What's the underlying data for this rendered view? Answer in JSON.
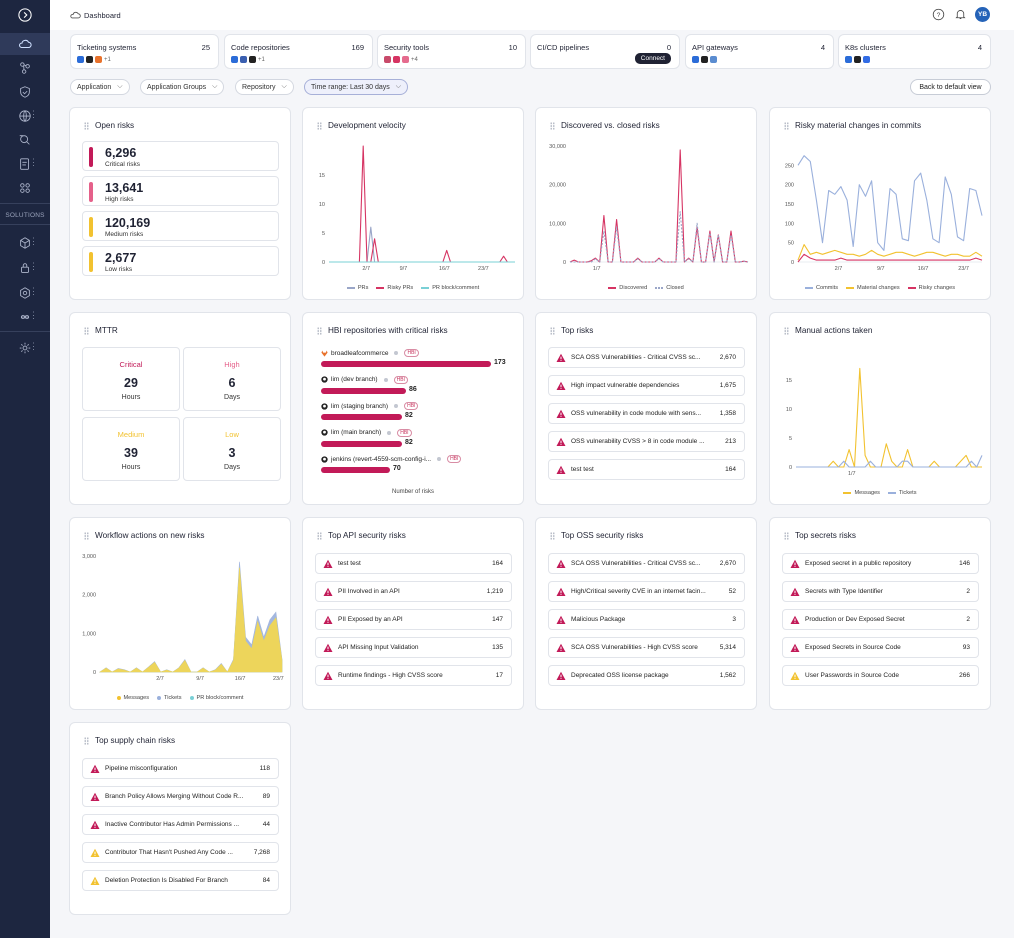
{
  "header": {
    "title": "Dashboard",
    "avatar": "YB"
  },
  "sidebar": {
    "solutions_label": "SOLUTIONS"
  },
  "integrations": [
    {
      "name": "Ticketing systems",
      "count": "25",
      "more": "+1"
    },
    {
      "name": "Code repositories",
      "count": "169",
      "more": "+1"
    },
    {
      "name": "Security tools",
      "count": "10",
      "more": "+4"
    },
    {
      "name": "CI/CD pipelines",
      "count": "0",
      "action": "Connect"
    },
    {
      "name": "API gateways",
      "count": "4"
    },
    {
      "name": "K8s clusters",
      "count": "4"
    }
  ],
  "filters": {
    "application": "Application",
    "groups": "Application Groups",
    "repository": "Repository",
    "time_range": "Time range: Last 30 days",
    "back": "Back to default view"
  },
  "open_risks": {
    "title": "Open risks",
    "items": [
      {
        "value": "6,296",
        "label": "Critical risks",
        "color": "#c21a58"
      },
      {
        "value": "13,641",
        "label": "High risks",
        "color": "#e5608a"
      },
      {
        "value": "120,169",
        "label": "Medium risks",
        "color": "#f2c230"
      },
      {
        "value": "2,677",
        "label": "Low risks",
        "color": "#f2c230"
      }
    ]
  },
  "mttr": {
    "title": "MTTR",
    "items": [
      {
        "label": "Critical",
        "value": "29",
        "unit": "Hours",
        "color": "#c21a58"
      },
      {
        "label": "High",
        "value": "6",
        "unit": "Days",
        "color": "#e5608a"
      },
      {
        "label": "Medium",
        "value": "39",
        "unit": "Hours",
        "color": "#f2c230"
      },
      {
        "label": "Low",
        "value": "3",
        "unit": "Days",
        "color": "#f2c230"
      }
    ]
  },
  "hbi": {
    "title": "HBI repositories with critical risks",
    "tag": "HBI",
    "axis_label": "Number of risks",
    "items": [
      {
        "name": "broadleafcommerce",
        "value": 173,
        "label": "173"
      },
      {
        "name": "lim (dev branch)",
        "value": 86,
        "label": "86"
      },
      {
        "name": "lim (staging branch)",
        "value": 82,
        "label": "82"
      },
      {
        "name": "lim (main branch)",
        "value": 82,
        "label": "82"
      },
      {
        "name": "jenkins (revert-4559-scm-config-i...",
        "value": 70,
        "label": "70"
      }
    ]
  },
  "top_risks": {
    "title": "Top risks",
    "items": [
      {
        "text": "SCA OSS Vulnerabilities - Critical CVSS sc...",
        "value": "2,670",
        "level": "critical"
      },
      {
        "text": "High impact vulnerable dependencies",
        "value": "1,675",
        "level": "critical"
      },
      {
        "text": "OSS vulnerability in code module with sens...",
        "value": "1,358",
        "level": "critical"
      },
      {
        "text": "OSS vulnerability CVSS > 8 in code module ...",
        "value": "213",
        "level": "critical"
      },
      {
        "text": "test test",
        "value": "164",
        "level": "critical"
      }
    ]
  },
  "api_risks": {
    "title": "Top API security risks",
    "items": [
      {
        "text": "test test",
        "value": "164",
        "level": "critical"
      },
      {
        "text": "PII Involved in an API",
        "value": "1,219",
        "level": "critical"
      },
      {
        "text": "PII Exposed by an API",
        "value": "147",
        "level": "critical"
      },
      {
        "text": "API Missing Input Validation",
        "value": "135",
        "level": "critical"
      },
      {
        "text": "Runtime findings - High CVSS score",
        "value": "17",
        "level": "critical"
      }
    ]
  },
  "oss_risks": {
    "title": "Top OSS security risks",
    "items": [
      {
        "text": "SCA OSS Vulnerabilities - Critical CVSS sc...",
        "value": "2,670",
        "level": "critical"
      },
      {
        "text": "High/Critical severity CVE in an internet facin...",
        "value": "52",
        "level": "critical"
      },
      {
        "text": "Malicious Package",
        "value": "3",
        "level": "critical"
      },
      {
        "text": "SCA OSS Vulnerabilities - High CVSS score",
        "value": "5,314",
        "level": "critical"
      },
      {
        "text": "Deprecated OSS license package",
        "value": "1,562",
        "level": "critical"
      }
    ]
  },
  "secrets_risks": {
    "title": "Top secrets risks",
    "items": [
      {
        "text": "Exposed secret in a public repository",
        "value": "146",
        "level": "critical"
      },
      {
        "text": "Secrets with Type Identifier",
        "value": "2",
        "level": "critical"
      },
      {
        "text": "Production or Dev Exposed Secret",
        "value": "2",
        "level": "critical"
      },
      {
        "text": "Exposed Secrets in Source Code",
        "value": "93",
        "level": "critical"
      },
      {
        "text": "User Passwords in Source Code",
        "value": "266",
        "level": "medium"
      }
    ]
  },
  "supply_risks": {
    "title": "Top supply chain risks",
    "items": [
      {
        "text": "Pipeline misconfiguration",
        "value": "118",
        "level": "critical"
      },
      {
        "text": "Branch Policy Allows Merging Without Code R...",
        "value": "89",
        "level": "critical"
      },
      {
        "text": "Inactive Contributor Has Admin Permissions ...",
        "value": "44",
        "level": "critical"
      },
      {
        "text": "Contributor That Hasn't Pushed Any Code ...",
        "value": "7,268",
        "level": "medium"
      },
      {
        "text": "Deletion Protection Is Disabled For Branch",
        "value": "84",
        "level": "medium"
      }
    ]
  },
  "chart_data": [
    {
      "id": "velocity",
      "type": "line",
      "title": "Development velocity",
      "ylim": [
        0,
        20
      ],
      "yticks": [
        "0",
        "5",
        "10",
        "15"
      ],
      "xticks": [
        "2/7",
        "9/7",
        "16/7",
        "23/7"
      ],
      "series": [
        {
          "name": "PRs",
          "color": "#9aa6c8",
          "values": [
            0,
            0,
            0,
            0,
            0,
            0,
            0,
            0,
            0,
            0,
            0,
            6,
            0,
            0,
            0,
            0,
            0,
            0,
            0,
            0,
            0,
            0,
            0,
            0,
            0,
            0,
            0,
            0,
            0,
            0,
            0,
            0,
            0,
            0,
            0,
            0,
            0,
            0,
            0,
            0,
            0,
            0,
            0,
            0,
            0,
            0,
            0,
            0,
            0,
            0
          ]
        },
        {
          "name": "Risky PRs",
          "color": "#d63463",
          "values": [
            0,
            0,
            0,
            0,
            0,
            0,
            0,
            0,
            0,
            20,
            0,
            0,
            4,
            0,
            0,
            0,
            0,
            0,
            0,
            0,
            0,
            0,
            0,
            0,
            0,
            0,
            0,
            0,
            0,
            0,
            0,
            2,
            0,
            0,
            0,
            0,
            0,
            0,
            0,
            0,
            0,
            0,
            0,
            0,
            0,
            0,
            1,
            0,
            0,
            0
          ]
        },
        {
          "name": "PR block/comment",
          "color": "#7ad0d6",
          "values": [
            0,
            0,
            0,
            0,
            0,
            0,
            0,
            0,
            0,
            0,
            0,
            0,
            0,
            0,
            0,
            0,
            0,
            0,
            0,
            0,
            0,
            0,
            0,
            0,
            0,
            0,
            0,
            0,
            0,
            0,
            0,
            0,
            0,
            0,
            0,
            0,
            0,
            0,
            0,
            0,
            0,
            0,
            0,
            0,
            0,
            0,
            0,
            0,
            0,
            0
          ]
        }
      ]
    },
    {
      "id": "discovered",
      "type": "line",
      "title": "Discovered vs. closed risks",
      "ylim": [
        0,
        30000
      ],
      "yticks": [
        "0",
        "10,000",
        "20,000",
        "30,000"
      ],
      "xticks": [
        "1/7"
      ],
      "series": [
        {
          "name": "Discovered",
          "color": "#d63463",
          "values": [
            0,
            500,
            0,
            0,
            0,
            300,
            1000,
            0,
            12000,
            0,
            0,
            11000,
            0,
            0,
            0,
            0,
            1000,
            0,
            0,
            0,
            0,
            1000,
            0,
            0,
            0,
            0,
            29000,
            0,
            1000,
            0,
            9000,
            0,
            0,
            8000,
            0,
            7000,
            0,
            0,
            8000,
            0,
            0,
            200,
            0
          ]
        },
        {
          "name": "Closed",
          "color": "#9aa6c8",
          "dash": true,
          "values": [
            0,
            0,
            0,
            0,
            0,
            0,
            800,
            0,
            8000,
            0,
            0,
            9000,
            0,
            0,
            0,
            0,
            800,
            0,
            0,
            0,
            0,
            800,
            0,
            0,
            0,
            0,
            13000,
            0,
            800,
            0,
            10000,
            0,
            0,
            7500,
            0,
            7000,
            0,
            0,
            7000,
            0,
            0,
            200,
            0
          ]
        }
      ]
    },
    {
      "id": "commits",
      "type": "line",
      "title": "Risky material changes in commits",
      "ylim": [
        0,
        300
      ],
      "yticks": [
        "0",
        "50",
        "100",
        "150",
        "200",
        "250"
      ],
      "xticks": [
        "2/7",
        "9/7",
        "16/7",
        "23/7"
      ],
      "series": [
        {
          "name": "Commits",
          "color": "#9ab0dc",
          "values": [
            250,
            275,
            260,
            160,
            50,
            185,
            175,
            195,
            160,
            40,
            200,
            170,
            210,
            50,
            30,
            190,
            175,
            60,
            55,
            210,
            230,
            160,
            60,
            50,
            220,
            175,
            65,
            55,
            190,
            185,
            120
          ]
        },
        {
          "name": "Material changes",
          "color": "#f2c230",
          "values": [
            5,
            45,
            20,
            25,
            20,
            25,
            30,
            25,
            20,
            20,
            15,
            20,
            30,
            20,
            15,
            20,
            25,
            25,
            20,
            15,
            20,
            25,
            25,
            20,
            15,
            20,
            20,
            15,
            15,
            25,
            15
          ]
        },
        {
          "name": "Risky changes",
          "color": "#d63463",
          "values": [
            0,
            20,
            10,
            5,
            5,
            5,
            5,
            10,
            5,
            5,
            5,
            5,
            5,
            5,
            5,
            5,
            5,
            5,
            5,
            5,
            5,
            5,
            5,
            5,
            5,
            5,
            5,
            5,
            5,
            10,
            5
          ]
        }
      ]
    },
    {
      "id": "manual",
      "type": "line",
      "title": "Manual actions taken",
      "ylim": [
        0,
        20
      ],
      "yticks": [
        "0",
        "5",
        "10",
        "15"
      ],
      "xticks": [
        "1/7"
      ],
      "series": [
        {
          "name": "Messages",
          "color": "#f2c230",
          "values": [
            0,
            0,
            0,
            0,
            0,
            0,
            0,
            1,
            0,
            0,
            3,
            0,
            17,
            2,
            0,
            0,
            0,
            4,
            1,
            0,
            0,
            3,
            0,
            0,
            0,
            0,
            1,
            0,
            0,
            0,
            0,
            1,
            2,
            0,
            0,
            0
          ]
        },
        {
          "name": "Tickets",
          "color": "#9ab0dc",
          "values": [
            0,
            0,
            0,
            0,
            0,
            0,
            0,
            0,
            0,
            1,
            0,
            0,
            0,
            0,
            1,
            0,
            0,
            0,
            0,
            0,
            1,
            1,
            0,
            0,
            0,
            0,
            0,
            0,
            0,
            0,
            0,
            0,
            0,
            1,
            0,
            2
          ]
        }
      ]
    },
    {
      "id": "workflow",
      "type": "area",
      "title": "Workflow actions on new risks",
      "ylim": [
        0,
        3000
      ],
      "yticks": [
        "0",
        "1,000",
        "2,000",
        "3,000"
      ],
      "xticks": [
        "2/7",
        "9/7",
        "16/7",
        "23/7"
      ],
      "series": [
        {
          "name": "Messages",
          "color": "#f7d94e",
          "values": [
            0,
            100,
            0,
            80,
            50,
            0,
            100,
            0,
            120,
            250,
            0,
            50,
            0,
            100,
            300,
            0,
            0,
            100,
            0,
            50,
            200,
            0,
            300,
            2700,
            800,
            600,
            1300,
            800,
            1200,
            1400,
            300
          ]
        },
        {
          "name": "Tickets",
          "color": "#9ab0dc",
          "values": [
            0,
            10,
            0,
            10,
            10,
            0,
            10,
            0,
            10,
            20,
            0,
            10,
            0,
            10,
            20,
            0,
            0,
            10,
            0,
            10,
            20,
            0,
            30,
            150,
            100,
            100,
            150,
            100,
            150,
            150,
            30
          ]
        },
        {
          "name": "PR block/comment",
          "color": "#7ad0d6",
          "values": [
            0,
            0,
            0,
            0,
            0,
            0,
            0,
            0,
            0,
            0,
            0,
            0,
            0,
            0,
            0,
            0,
            0,
            0,
            0,
            0,
            0,
            0,
            0,
            0,
            0,
            0,
            0,
            0,
            0,
            0,
            0
          ]
        }
      ]
    }
  ]
}
